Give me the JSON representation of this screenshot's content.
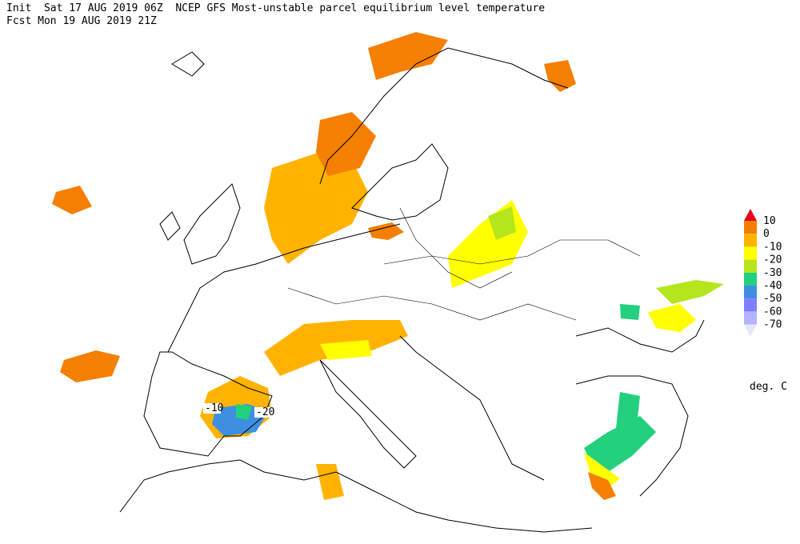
{
  "header": {
    "line1": "Init  Sat 17 AUG 2019 06Z  NCEP GFS Most-unstable parcel equilibrium level temperature",
    "line2": "Fcst Mon 19 AUG 2019 21Z"
  },
  "legend": {
    "ticks": [
      10,
      0,
      -10,
      -20,
      -30,
      -40,
      -50,
      -60,
      -70
    ],
    "colors": [
      "#e8001c",
      "#f47f00",
      "#ffb300",
      "#ffff00",
      "#b5e61d",
      "#22d07e",
      "#3f8fe0",
      "#7f7fff",
      "#b3b3ff",
      "#e6e6ff"
    ],
    "unit": "deg. C"
  },
  "map": {
    "contour_labels": [
      -10,
      -20
    ]
  }
}
